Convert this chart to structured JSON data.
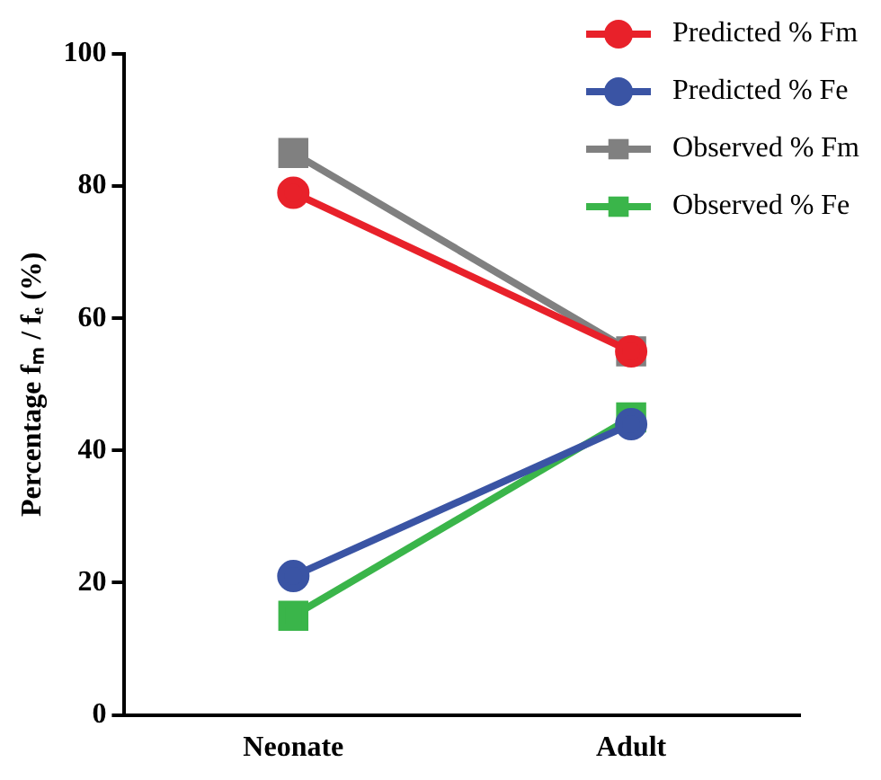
{
  "chart_data": {
    "type": "line",
    "ylabel": "Percentage fₘ / fₑ (%)",
    "categories": [
      "Neonate",
      "Adult"
    ],
    "series": [
      {
        "name": "Predicted % Fm",
        "color": "#e8212a",
        "values": [
          79,
          55
        ],
        "marker": "circle"
      },
      {
        "name": "Predicted % Fe",
        "color": "#3a54a4",
        "values": [
          21,
          44
        ],
        "marker": "circle"
      },
      {
        "name": "Observed % Fm",
        "color": "#808080",
        "values": [
          85,
          55
        ],
        "marker": "square"
      },
      {
        "name": "Observed % Fe",
        "color": "#3ab54a",
        "values": [
          15,
          45
        ],
        "marker": "square"
      }
    ],
    "ylim": [
      0,
      100
    ],
    "yticks": [
      0,
      20,
      40,
      60,
      80,
      100
    ],
    "grid": false,
    "legend": "top right",
    "line_style": "solid"
  }
}
